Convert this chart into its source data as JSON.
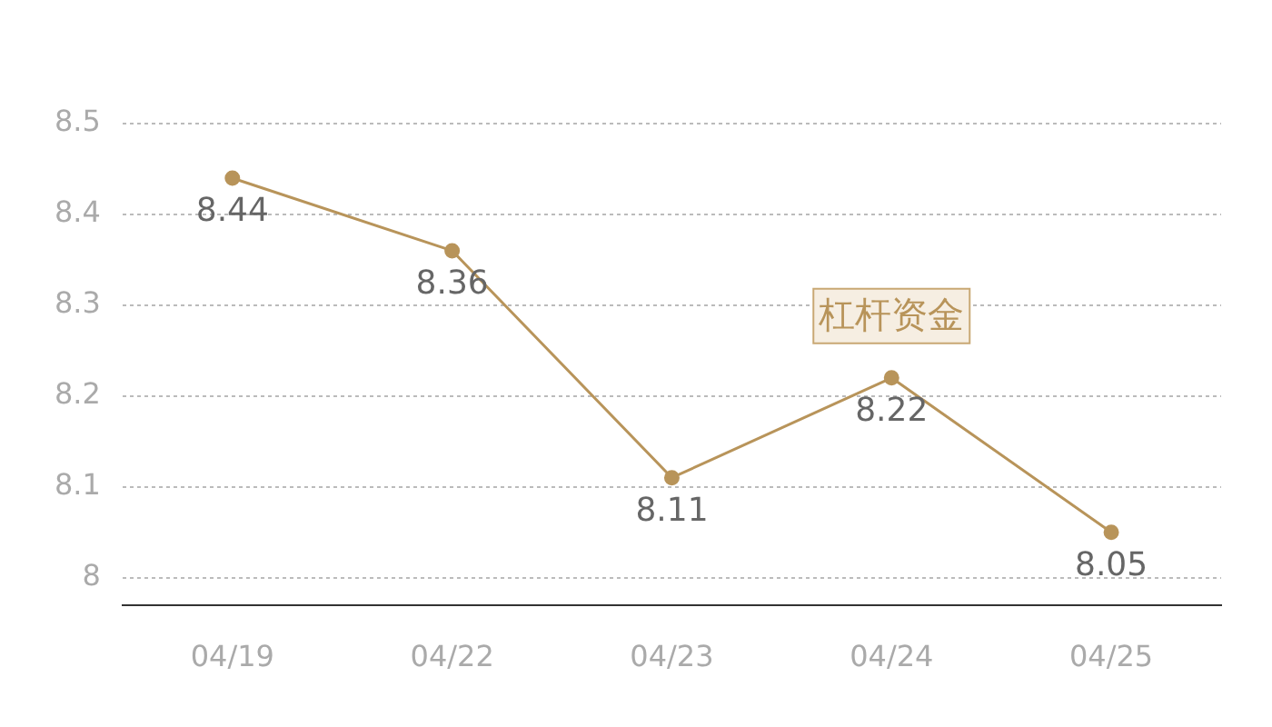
{
  "chart_data": {
    "type": "line",
    "categories": [
      "04/19",
      "04/22",
      "04/23",
      "04/24",
      "04/25"
    ],
    "series": [
      {
        "color": "#b8945a",
        "values": [
          8.44,
          8.36,
          8.11,
          8.22,
          8.05
        ]
      }
    ],
    "ylim": [
      7.97,
      8.5
    ],
    "yticks": [
      8,
      8.1,
      8.2,
      8.3,
      8.4,
      8.5
    ],
    "grid": "y",
    "marker": "circle",
    "line_style": "solid",
    "data_labels": true,
    "annotations": [
      {
        "text": "杠杆资金",
        "x": "04/24",
        "y": 8.22
      }
    ]
  }
}
